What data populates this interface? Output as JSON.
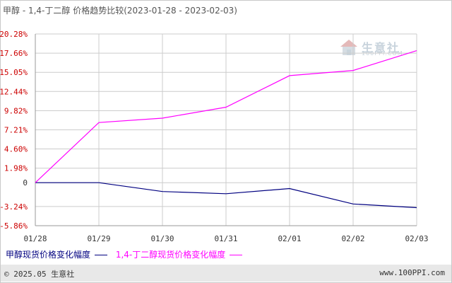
{
  "title": "甲醇 - 1,4-丁二醇 价格趋势比较(2023-01-28 - 2023-02-03)",
  "watermark": {
    "name": "生意社",
    "url": "100PPI.COM"
  },
  "footer": {
    "left": "© 2025.05 生意社",
    "right": "www.100PPI.com"
  },
  "colors": {
    "methanol": "#000080",
    "bdo": "#ff00ff",
    "ytick": "#cc0000",
    "grid": "#cccccc"
  },
  "chart_data": {
    "type": "line",
    "title": "甲醇 - 1,4-丁二醇 价格趋势比较(2023-01-28 - 2023-02-03)",
    "categories": [
      "01/28",
      "01/29",
      "01/30",
      "01/31",
      "02/01",
      "02/02",
      "02/03"
    ],
    "yticks": [
      "20.28%",
      "17.66%",
      "15.05%",
      "12.44%",
      "9.82%",
      "7.21%",
      "4.60%",
      "1.98%",
      "0",
      "-3.24%",
      "-5.86%"
    ],
    "ytick_values": [
      20.28,
      17.66,
      15.05,
      12.44,
      9.82,
      7.21,
      4.6,
      1.98,
      0,
      -3.24,
      -5.86
    ],
    "ylim": [
      -5.86,
      20.28
    ],
    "grid": true,
    "legend_position": "bottom-left",
    "series": [
      {
        "name": "甲醇现货价格变化幅度",
        "color": "#000080",
        "values": [
          0,
          0,
          -1.2,
          -1.5,
          -0.8,
          -2.9,
          -3.4
        ]
      },
      {
        "name": "1,4-丁二醇现货价格变化幅度",
        "color": "#ff00ff",
        "values": [
          0,
          8.2,
          8.8,
          10.3,
          14.6,
          15.3,
          18.0
        ]
      }
    ]
  }
}
